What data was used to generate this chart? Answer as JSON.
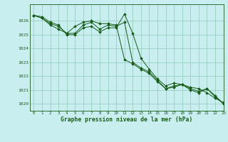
{
  "title": "Graphe pression niveau de la mer (hPa)",
  "background_color": "#c8eef0",
  "grid_color": "#90c8b8",
  "line_color": "#1a5c1a",
  "marker_color": "#1a5c1a",
  "xlim": [
    -0.5,
    23
  ],
  "ylim": [
    1019.5,
    1027.2
  ],
  "yticks": [
    1020,
    1021,
    1022,
    1023,
    1024,
    1025,
    1026
  ],
  "xticks": [
    0,
    1,
    2,
    3,
    4,
    5,
    6,
    7,
    8,
    9,
    10,
    11,
    12,
    13,
    14,
    15,
    16,
    17,
    18,
    19,
    20,
    21,
    22,
    23
  ],
  "series1": [
    1026.4,
    1026.3,
    1025.9,
    1025.7,
    1025.0,
    1025.0,
    1025.5,
    1025.6,
    1025.2,
    1025.5,
    1025.5,
    1026.5,
    1025.1,
    1023.3,
    1022.5,
    1021.8,
    1021.3,
    1021.5,
    1021.4,
    1021.2,
    1021.1,
    1020.8,
    1020.4,
    1020.1
  ],
  "series2": [
    1026.4,
    1026.2,
    1025.7,
    1025.4,
    1025.1,
    1025.6,
    1025.9,
    1026.0,
    1025.8,
    1025.8,
    1025.7,
    1023.2,
    1022.9,
    1022.5,
    1022.2,
    1021.6,
    1021.1,
    1021.2,
    1021.4,
    1021.0,
    1020.8,
    1021.1,
    1020.6,
    1020.0
  ],
  "series3": [
    1026.4,
    1026.2,
    1025.8,
    1025.6,
    1025.1,
    1025.1,
    1025.7,
    1025.9,
    1025.4,
    1025.7,
    1025.6,
    1025.9,
    1023.0,
    1022.6,
    1022.3,
    1021.7,
    1021.1,
    1021.3,
    1021.4,
    1021.1,
    1020.9,
    1021.1,
    1020.5,
    1020.0
  ],
  "figwidth": 3.2,
  "figheight": 2.0,
  "dpi": 100
}
